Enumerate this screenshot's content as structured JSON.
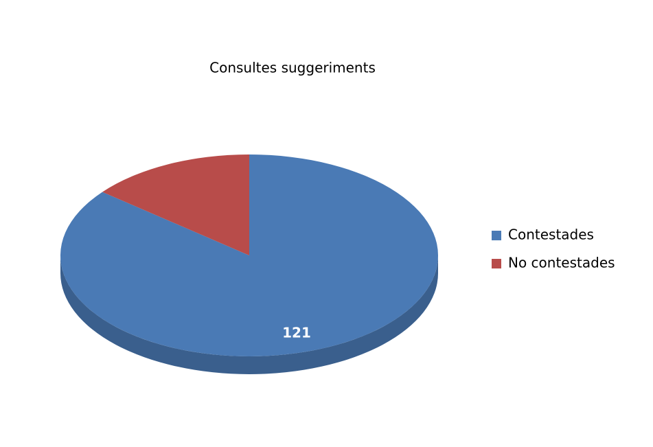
{
  "chart_data": {
    "type": "pie",
    "title": "Consultes suggeriments",
    "categories": [
      "Contestades",
      "No contestades"
    ],
    "values": [
      121,
      20
    ],
    "value_labels": [
      "121",
      null
    ],
    "colors": [
      "#4a7ab5",
      "#b84c4a"
    ],
    "legend": "right"
  }
}
